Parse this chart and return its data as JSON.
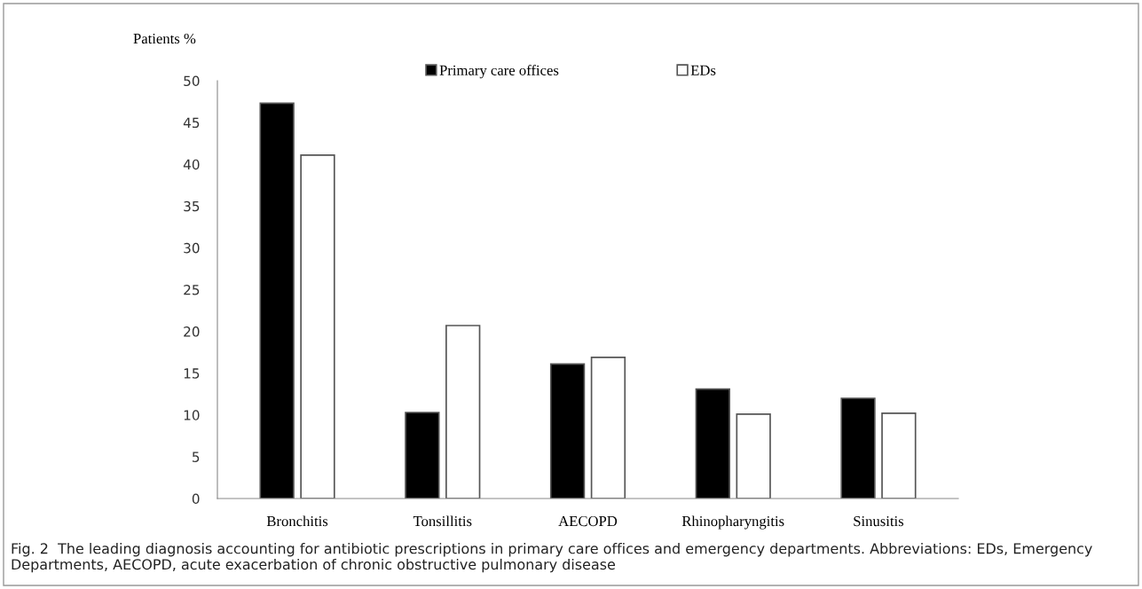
{
  "chart_data": {
    "type": "bar",
    "ylabel": "Patients %",
    "categories": [
      "Bronchitis",
      "Tonsillitis",
      "AECOPD",
      "Rhinopharyngitis",
      "Sinusitis"
    ],
    "series": [
      {
        "name": "Primary care offices",
        "color": "#000000",
        "values": [
          47.3,
          10.3,
          16.1,
          13.1,
          12.0
        ]
      },
      {
        "name": "EDs",
        "color": "#ffffff",
        "values": [
          41.1,
          20.7,
          16.9,
          10.1,
          10.2
        ]
      }
    ],
    "ylim": [
      0,
      50
    ],
    "yticks": [
      0,
      5,
      10,
      15,
      20,
      25,
      30,
      35,
      40,
      45,
      50
    ],
    "legend": "top",
    "grid": false,
    "annotations": [
      "Fig. 2  The leading diagnosis accounting for antibiotic prescriptions in primary care offices and emergency departments. Abbreviations: EDs, Emergency Departments, AECOPD, acute exacerbation of chronic obstructive pulmonary disease"
    ]
  }
}
